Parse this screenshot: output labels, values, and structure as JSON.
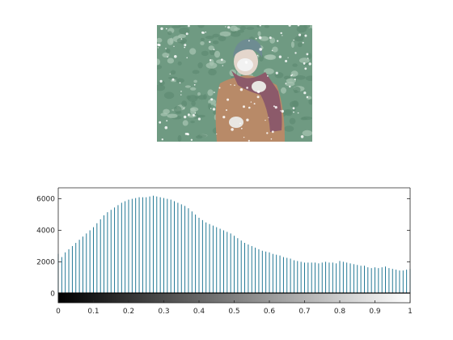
{
  "image": {
    "subject": "grayscale-intensity image",
    "colors": {
      "foliage": "#6f9a82",
      "foliage_light": "#a9c6b4",
      "coat": "#b88a68",
      "scarf": "#8c5a6a",
      "hat": "#6e8c92",
      "face": "#e4d6cc",
      "mask": "#f2f2f2"
    }
  },
  "chart_data": {
    "type": "bar",
    "title": "",
    "xlabel": "",
    "ylabel": "",
    "xlim": [
      0,
      1
    ],
    "ylim": [
      -500,
      6700
    ],
    "yticks": [
      0,
      2000,
      4000,
      6000
    ],
    "ytick_labels": [
      "0",
      "2000",
      "4000",
      "6000"
    ],
    "xticks": [
      0,
      0.1,
      0.2,
      0.3,
      0.4,
      0.5,
      0.6,
      0.7,
      0.8,
      0.9,
      1
    ],
    "xtick_labels": [
      "0",
      "0.1",
      "0.2",
      "0.3",
      "0.4",
      "0.5",
      "0.6",
      "0.7",
      "0.8",
      "0.9",
      "1"
    ],
    "bar_color": "#0d6b8a",
    "colorbar": "grayscale 0 to 1",
    "x": [
      0.0,
      0.01,
      0.02,
      0.03,
      0.04,
      0.05,
      0.06,
      0.07,
      0.08,
      0.09,
      0.1,
      0.11,
      0.12,
      0.13,
      0.14,
      0.15,
      0.16,
      0.17,
      0.18,
      0.19,
      0.2,
      0.21,
      0.22,
      0.23,
      0.24,
      0.25,
      0.26,
      0.27,
      0.28,
      0.29,
      0.3,
      0.31,
      0.32,
      0.33,
      0.34,
      0.35,
      0.36,
      0.37,
      0.38,
      0.39,
      0.4,
      0.41,
      0.42,
      0.43,
      0.44,
      0.45,
      0.46,
      0.47,
      0.48,
      0.49,
      0.5,
      0.51,
      0.52,
      0.53,
      0.54,
      0.55,
      0.56,
      0.57,
      0.58,
      0.59,
      0.6,
      0.61,
      0.62,
      0.63,
      0.64,
      0.65,
      0.66,
      0.67,
      0.68,
      0.69,
      0.7,
      0.71,
      0.72,
      0.73,
      0.74,
      0.75,
      0.76,
      0.77,
      0.78,
      0.79,
      0.8,
      0.81,
      0.82,
      0.83,
      0.84,
      0.85,
      0.86,
      0.87,
      0.88,
      0.89,
      0.9,
      0.91,
      0.92,
      0.93,
      0.94,
      0.95,
      0.96,
      0.97,
      0.98,
      0.99,
      1.0
    ],
    "values": [
      2500,
      2300,
      2600,
      2800,
      3000,
      3200,
      3400,
      3600,
      3800,
      4000,
      4200,
      4450,
      4700,
      4950,
      5150,
      5300,
      5450,
      5600,
      5750,
      5850,
      5950,
      6000,
      6050,
      6100,
      6100,
      6100,
      6150,
      6200,
      6150,
      6100,
      6050,
      6000,
      5950,
      5850,
      5750,
      5650,
      5550,
      5400,
      5200,
      5000,
      4800,
      4650,
      4500,
      4400,
      4300,
      4200,
      4100,
      4000,
      3900,
      3800,
      3650,
      3500,
      3350,
      3200,
      3100,
      3000,
      2900,
      2800,
      2700,
      2650,
      2600,
      2500,
      2450,
      2400,
      2300,
      2250,
      2200,
      2100,
      2050,
      2000,
      1950,
      1950,
      1950,
      1950,
      1900,
      1950,
      2000,
      1950,
      1950,
      1900,
      2050,
      2000,
      1950,
      1900,
      1850,
      1800,
      1750,
      1750,
      1650,
      1600,
      1650,
      1600,
      1650,
      1700,
      1600,
      1550,
      1500,
      1450,
      1450,
      1500,
      1550
    ]
  }
}
